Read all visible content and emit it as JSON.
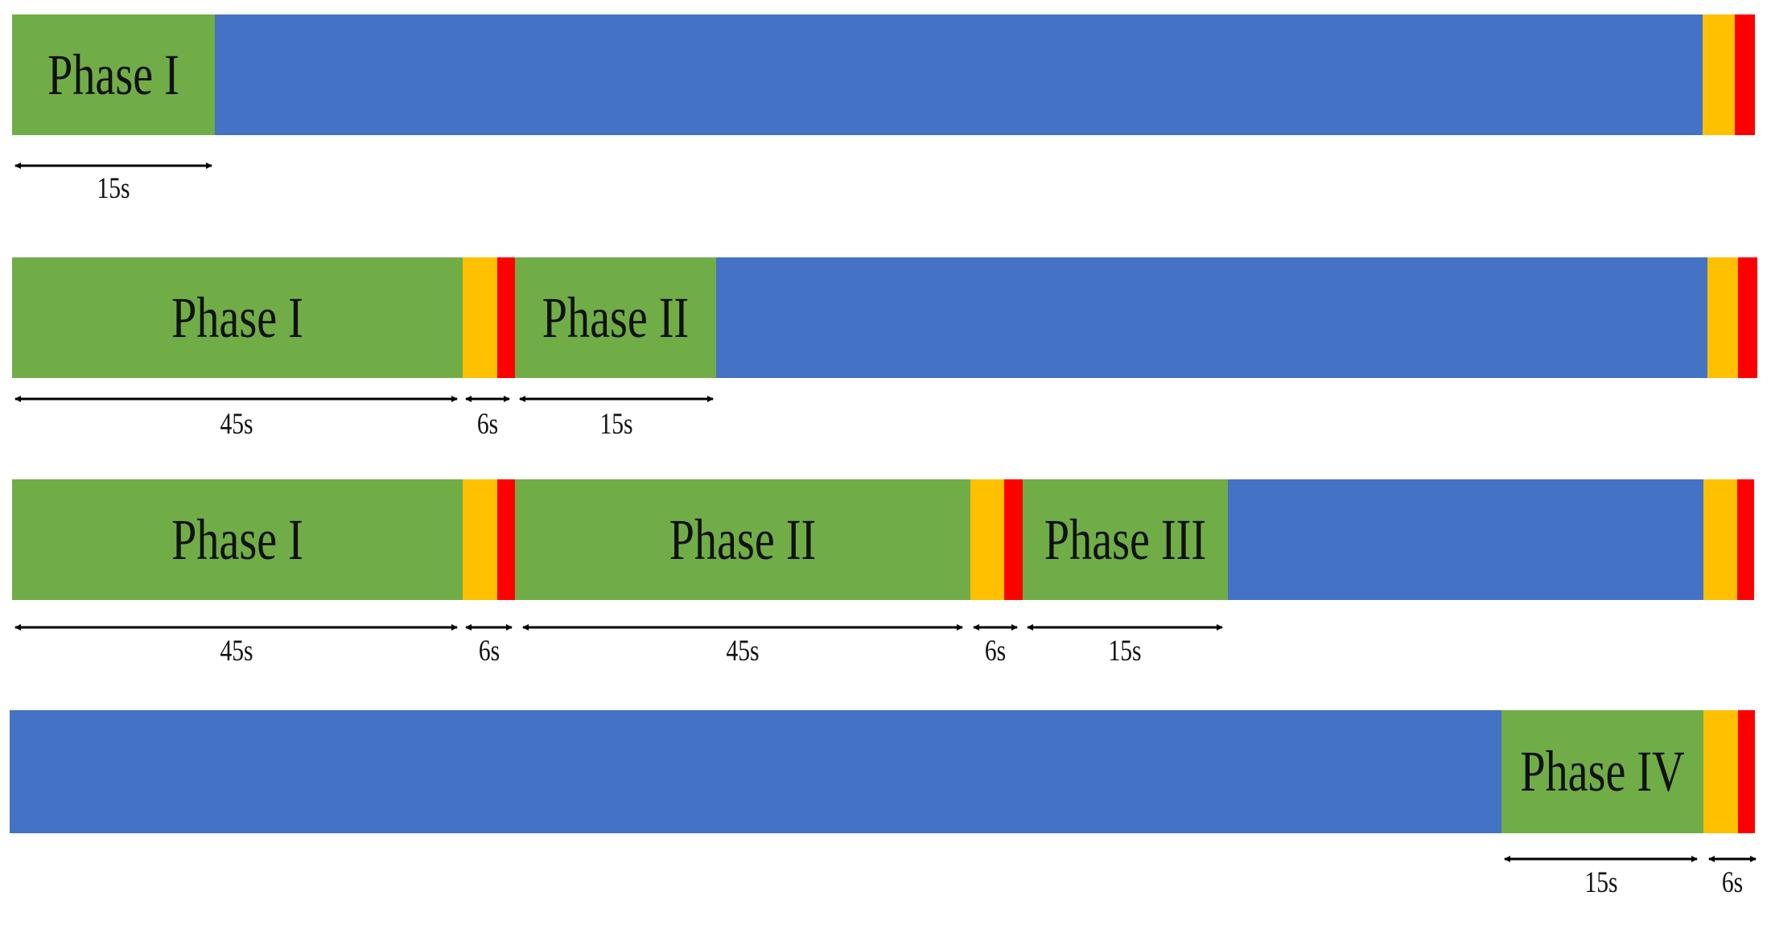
{
  "colors": {
    "green": "#70AD47",
    "blue": "#4472C4",
    "amber": "#FFC000",
    "red": "#FF0000",
    "arrow": "#000000"
  },
  "rows": [
    {
      "name": "row-1",
      "segments": [
        {
          "kind": "green",
          "label": "Phase I"
        },
        {
          "kind": "blue"
        },
        {
          "kind": "amber"
        },
        {
          "kind": "red"
        }
      ],
      "dimensions": [
        "15s"
      ]
    },
    {
      "name": "row-2",
      "segments": [
        {
          "kind": "green",
          "label": "Phase I"
        },
        {
          "kind": "amber"
        },
        {
          "kind": "red"
        },
        {
          "kind": "green",
          "label": "Phase II"
        },
        {
          "kind": "blue"
        },
        {
          "kind": "amber"
        },
        {
          "kind": "red"
        }
      ],
      "dimensions": [
        "45s",
        "6s",
        "15s"
      ]
    },
    {
      "name": "row-3",
      "segments": [
        {
          "kind": "green",
          "label": "Phase I"
        },
        {
          "kind": "amber"
        },
        {
          "kind": "red"
        },
        {
          "kind": "green",
          "label": "Phase II"
        },
        {
          "kind": "amber"
        },
        {
          "kind": "red"
        },
        {
          "kind": "green",
          "label": "Phase III"
        },
        {
          "kind": "blue"
        },
        {
          "kind": "amber"
        },
        {
          "kind": "red"
        }
      ],
      "dimensions": [
        "45s",
        "6s",
        "45s",
        "6s",
        "15s"
      ]
    },
    {
      "name": "row-4",
      "segments": [
        {
          "kind": "blue"
        },
        {
          "kind": "green",
          "label": "Phase IV"
        },
        {
          "kind": "amber"
        },
        {
          "kind": "red"
        }
      ],
      "dimensions": [
        "15s",
        "6s"
      ]
    }
  ]
}
